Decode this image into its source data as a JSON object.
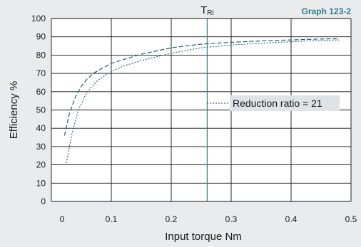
{
  "graph_id": "Graph 123-2",
  "marker": {
    "label": "T",
    "sub": "Ri",
    "x": 0.26
  },
  "chart_data": {
    "type": "line",
    "xlabel": "Input torque   Nm",
    "ylabel": "Efficiency %",
    "xlim": [
      0,
      0.5
    ],
    "ylim": [
      0,
      100
    ],
    "x_ticks": [
      {
        "v": 0,
        "label": "0"
      },
      {
        "v": 0.1,
        "label": "0.1"
      },
      {
        "v": 0.2,
        "label": "0.2"
      },
      {
        "v": 0.3,
        "label": "0.3"
      },
      {
        "v": 0.4,
        "label": "0.4"
      },
      {
        "v": 0.5,
        "label": "0.5"
      }
    ],
    "y_ticks": [
      {
        "v": 0,
        "label": "0"
      },
      {
        "v": 10,
        "label": "10"
      },
      {
        "v": 20,
        "label": "20"
      },
      {
        "v": 30,
        "label": "30"
      },
      {
        "v": 40,
        "label": "40"
      },
      {
        "v": 50,
        "label": "50"
      },
      {
        "v": 60,
        "label": "60"
      },
      {
        "v": 70,
        "label": "70"
      },
      {
        "v": 80,
        "label": "80"
      },
      {
        "v": 90,
        "label": "90"
      },
      {
        "v": 100,
        "label": "100"
      }
    ],
    "grid": true,
    "legend": {
      "label": "Reduction ratio = 21",
      "position": "center-right"
    },
    "series": [
      {
        "name": "",
        "style": "dashed",
        "color": "#1f5f73",
        "x": [
          0.022,
          0.03,
          0.04,
          0.05,
          0.06,
          0.07,
          0.08,
          0.1,
          0.12,
          0.15,
          0.2,
          0.25,
          0.3,
          0.35,
          0.4,
          0.45,
          0.48
        ],
        "y": [
          36,
          48,
          57,
          63,
          67,
          70,
          72,
          75.5,
          77.5,
          80.5,
          84,
          86,
          87,
          87.8,
          88.3,
          88.8,
          89
        ]
      },
      {
        "name": "Reduction ratio = 21",
        "style": "dotted",
        "color": "#2e6e80",
        "x": [
          0.025,
          0.035,
          0.045,
          0.055,
          0.065,
          0.075,
          0.09,
          0.1,
          0.12,
          0.15,
          0.2,
          0.25,
          0.3,
          0.35,
          0.4,
          0.45,
          0.48
        ],
        "y": [
          21,
          38,
          50,
          57,
          62,
          65.5,
          69,
          71,
          74,
          77,
          81,
          84,
          85.5,
          86.5,
          87.3,
          88,
          88.3
        ]
      }
    ]
  }
}
